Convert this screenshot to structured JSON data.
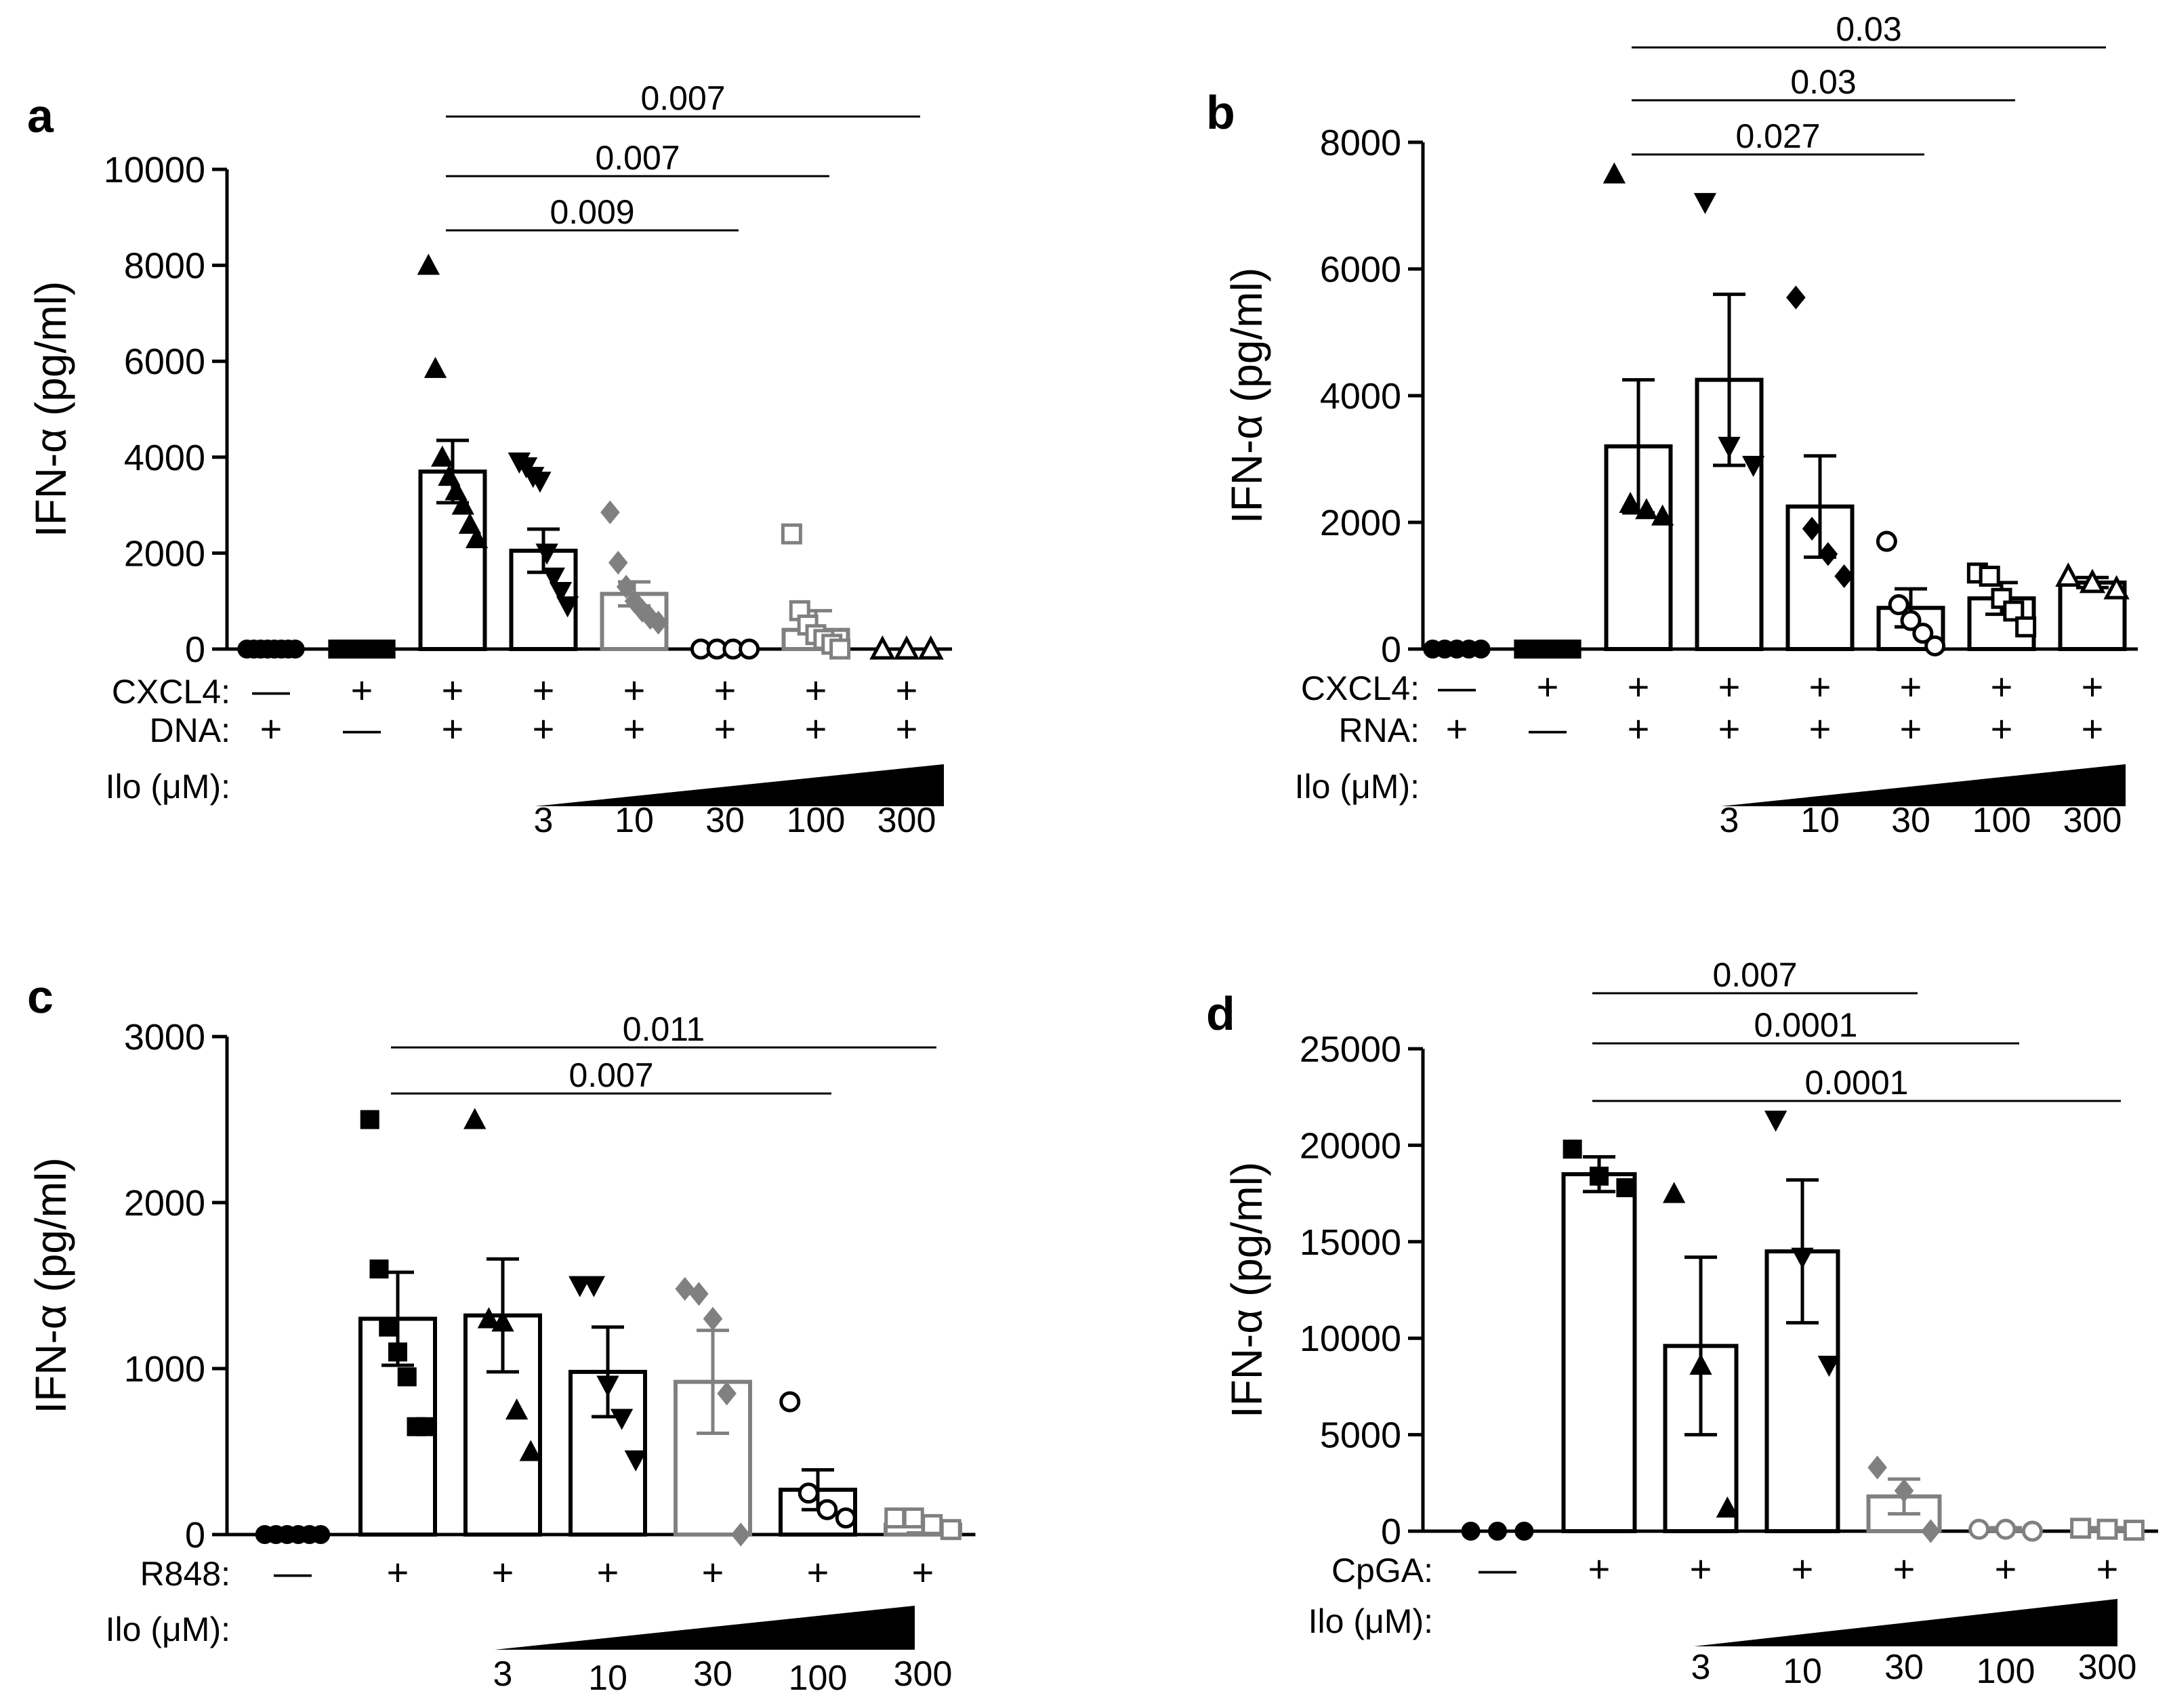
{
  "figure": {
    "ylabel": "IFN-α (pg/ml)",
    "dose_label": "Ilo (μM):",
    "concentrations": [
      "3",
      "10",
      "30",
      "100",
      "300"
    ],
    "colors": {
      "black": "#000000",
      "gray": "#808080"
    }
  },
  "chart_data": [
    {
      "panel": "a",
      "type": "bar",
      "ylabel": "IFN-α (pg/ml)",
      "ylim": [
        0,
        10000
      ],
      "yticks": [
        "0",
        "2000",
        "4000",
        "6000",
        "8000",
        "10000"
      ],
      "categories": [
        "DNA",
        "CXCL4",
        "CXCL4+DNA",
        "Ilo 3",
        "Ilo 10",
        "Ilo 30",
        "Ilo 100",
        "Ilo 300"
      ],
      "values": [
        20,
        20,
        3700,
        2050,
        1150,
        20,
        400,
        20
      ],
      "sem": [
        0,
        0,
        650,
        450,
        250,
        0,
        400,
        0
      ],
      "bar_colors": [
        "black",
        "black",
        "black",
        "black",
        "gray",
        "black",
        "gray",
        "black"
      ],
      "markers": [
        "circle",
        "square",
        "triangle-up",
        "triangle-down",
        "diamond",
        "circle-open",
        "square-open",
        "triangle-open"
      ],
      "points": [
        [
          0,
          0,
          0,
          0,
          0,
          0,
          0,
          0
        ],
        [
          0,
          0,
          0,
          0,
          0
        ],
        [
          8000,
          5850,
          4000,
          3600,
          3300,
          3000,
          2600,
          2300
        ],
        [
          3900,
          3800,
          3600,
          3500,
          2000,
          1500,
          1200,
          900
        ],
        [
          2850,
          1800,
          1300,
          1000,
          800,
          650,
          550
        ],
        [
          0,
          0,
          0,
          0
        ],
        [
          2400,
          800,
          500,
          300,
          200,
          100,
          0
        ],
        [
          0,
          0,
          0
        ]
      ],
      "rows": [
        {
          "label": "CXCL4:",
          "signs": [
            "—",
            "+",
            "+",
            "+",
            "+",
            "+",
            "+",
            "+"
          ]
        },
        {
          "label": "DNA:",
          "signs": [
            "+",
            "—",
            "+",
            "+",
            "+",
            "+",
            "+",
            "+"
          ]
        }
      ],
      "significance": [
        {
          "label": "0.007",
          "from": 2,
          "to": 7
        },
        {
          "label": "0.007",
          "from": 2,
          "to": 6
        },
        {
          "label": "0.009",
          "from": 2,
          "to": 5
        }
      ]
    },
    {
      "panel": "b",
      "type": "bar",
      "ylabel": "IFN-α (pg/ml)",
      "ylim": [
        0,
        8000
      ],
      "yticks": [
        "0",
        "2000",
        "4000",
        "6000",
        "8000"
      ],
      "categories": [
        "RNA",
        "CXCL4",
        "CXCL4+RNA",
        "Ilo 3",
        "Ilo 10",
        "Ilo 30",
        "Ilo 100",
        "Ilo 300"
      ],
      "values": [
        20,
        20,
        3200,
        4250,
        2250,
        650,
        800,
        1050
      ],
      "sem": [
        0,
        0,
        1050,
        1350,
        800,
        300,
        250,
        80
      ],
      "bar_colors": [
        "black",
        "black",
        "black",
        "black",
        "black",
        "black",
        "black",
        "black"
      ],
      "markers": [
        "circle",
        "square",
        "triangle-up",
        "triangle-down",
        "diamond",
        "circle-open",
        "square-open",
        "triangle-open"
      ],
      "points": [
        [
          0,
          0,
          0,
          0,
          0
        ],
        [
          0,
          0,
          0,
          0
        ],
        [
          7500,
          2300,
          2200,
          2100
        ],
        [
          7050,
          3200,
          2900
        ],
        [
          5550,
          1900,
          1500,
          1150
        ],
        [
          1700,
          700,
          450,
          250,
          50
        ],
        [
          1200,
          1150,
          800,
          600,
          350
        ],
        [
          1150,
          1050,
          950
        ]
      ],
      "rows": [
        {
          "label": "CXCL4:",
          "signs": [
            "—",
            "+",
            "+",
            "+",
            "+",
            "+",
            "+",
            "+"
          ]
        },
        {
          "label": "RNA:",
          "signs": [
            "+",
            "—",
            "+",
            "+",
            "+",
            "+",
            "+",
            "+"
          ]
        }
      ],
      "significance": [
        {
          "label": "0.03",
          "from": 2,
          "to": 7
        },
        {
          "label": "0.03",
          "from": 2,
          "to": 6
        },
        {
          "label": "0.027",
          "from": 2,
          "to": 5
        }
      ]
    },
    {
      "panel": "c",
      "type": "bar",
      "ylabel": "IFN-α (pg/ml)",
      "ylim": [
        0,
        3000
      ],
      "yticks": [
        "0",
        "1000",
        "2000",
        "3000"
      ],
      "categories": [
        "R848 -",
        "R848",
        "Ilo 3",
        "Ilo 10",
        "Ilo 30",
        "Ilo 100",
        "Ilo 300"
      ],
      "values": [
        10,
        1300,
        1320,
        980,
        920,
        270,
        60
      ],
      "sem": [
        0,
        280,
        340,
        270,
        310,
        120,
        50
      ],
      "bar_colors": [
        "black",
        "black",
        "black",
        "black",
        "gray",
        "black",
        "gray"
      ],
      "markers": [
        "circle",
        "square",
        "triangle-up",
        "triangle-down",
        "diamond",
        "circle-open",
        "square-open"
      ],
      "points": [
        [
          0,
          0,
          0,
          0,
          0,
          0
        ],
        [
          2500,
          1600,
          1250,
          1100,
          950,
          650,
          650
        ],
        [
          2500,
          1300,
          1280,
          750,
          500
        ],
        [
          1500,
          1500,
          900,
          700,
          450
        ],
        [
          1480,
          1450,
          1300,
          850,
          0
        ],
        [
          800,
          250,
          150,
          100
        ],
        [
          100,
          100,
          60,
          30
        ]
      ],
      "rows": [
        {
          "label": "R848:",
          "signs": [
            "—",
            "+",
            "+",
            "+",
            "+",
            "+",
            "+"
          ]
        }
      ],
      "significance": [
        {
          "label": "0.011",
          "from": 1,
          "to": 6
        },
        {
          "label": "0.007",
          "from": 1,
          "to": 5
        }
      ]
    },
    {
      "panel": "d",
      "type": "bar",
      "ylabel": "IFN-α (pg/ml)",
      "ylim": [
        0,
        25000
      ],
      "yticks": [
        "0",
        "5000",
        "10000",
        "15000",
        "20000",
        "25000"
      ],
      "categories": [
        "CpGA -",
        "CpGA",
        "Ilo 3",
        "Ilo 10",
        "Ilo 30",
        "Ilo 100",
        "Ilo 300"
      ],
      "values": [
        20,
        18500,
        9600,
        14500,
        1800,
        100,
        100
      ],
      "sem": [
        0,
        900,
        4600,
        3700,
        900,
        80,
        80
      ],
      "bar_colors": [
        "black",
        "black",
        "black",
        "black",
        "gray",
        "gray",
        "gray"
      ],
      "markers": [
        "circle",
        "square",
        "triangle-up",
        "triangle-down",
        "diamond",
        "circle-open",
        "square-open"
      ],
      "points": [
        [
          0,
          0,
          0
        ],
        [
          19800,
          18400,
          17800
        ],
        [
          17500,
          8600,
          1200
        ],
        [
          21300,
          14200,
          8600
        ],
        [
          3300,
          2100,
          0
        ],
        [
          100,
          100,
          0
        ],
        [
          150,
          100,
          50
        ]
      ],
      "rows": [
        {
          "label": "CpGA:",
          "signs": [
            "—",
            "+",
            "+",
            "+",
            "+",
            "+",
            "+"
          ]
        }
      ],
      "significance": [
        {
          "label": "0.007",
          "from": 1,
          "to": 4
        },
        {
          "label": "0.0001",
          "from": 1,
          "to": 5
        },
        {
          "label": "0.0001",
          "from": 1,
          "to": 6
        }
      ]
    }
  ]
}
